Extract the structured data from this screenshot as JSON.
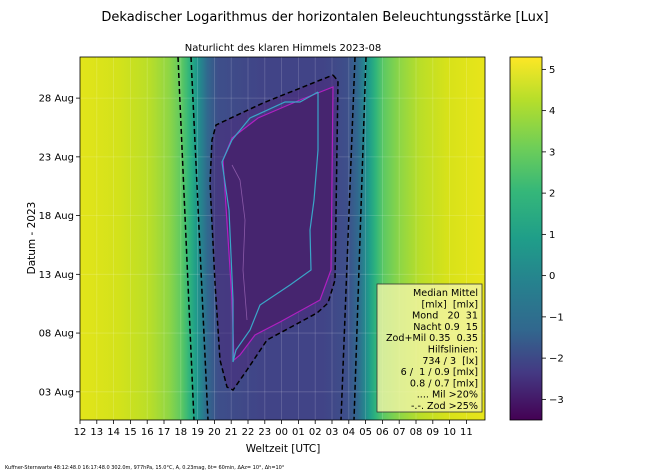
{
  "chart_data": {
    "type": "heatmap",
    "title": "Dekadischer Logarithmus der horizontalen Beleuchtungsstärke [Lux]",
    "subtitle": "Naturlicht des klaren Himmels 2023-08",
    "xlabel": "Weltzeit [UTC]",
    "ylabel": "Datum - 2023",
    "x_tick_labels": [
      "12",
      "13",
      "14",
      "15",
      "16",
      "17",
      "18",
      "19",
      "20",
      "21",
      "22",
      "23",
      "00",
      "01",
      "02",
      "03",
      "04",
      "05",
      "06",
      "07",
      "08",
      "09",
      "10",
      "11"
    ],
    "y_tick_labels": [
      "03 Aug",
      "08 Aug",
      "13 Aug",
      "18 Aug",
      "23 Aug",
      "28 Aug"
    ],
    "y_tick_days": [
      3,
      8,
      13,
      18,
      23,
      28
    ],
    "ylim_days": [
      0.6,
      31.5
    ],
    "grid": true,
    "colorbar": {
      "ticks": [
        5,
        4,
        3,
        2,
        1,
        0,
        -1,
        -2,
        -3
      ],
      "tick_labels": [
        "5",
        "4",
        "3",
        "2",
        "1",
        "0",
        "−1",
        "−2",
        "−3"
      ],
      "range": [
        -3.5,
        5.3
      ],
      "colormap": "viridis"
    },
    "legend": {
      "placement": "lower-right",
      "lines": [
        "Median Mittel",
        "[mlx]  [mlx]",
        "Mond   20  31",
        "Nacht 0.9  15",
        "Zod+Mil 0.35  0.35",
        "Hilfslinien:",
        "734 / 3  [lx]",
        "6 /  1 / 0.9 [mlx]",
        "0.8 / 0.7 [mlx]",
        ".... Mil >20%",
        "-.-. Zod >25%"
      ]
    }
  },
  "footer": "Kuffner-Sternwarte 48:12:48.0 16:17:48.0 302.0m,  977hPa, 15.0°C, A, 0.23mag, δt= 60min, ΔAz= 10°, Δh=10°"
}
